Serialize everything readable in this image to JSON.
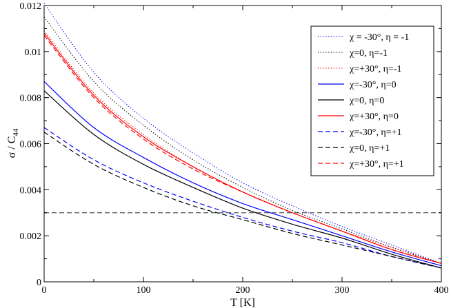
{
  "chart_data": {
    "type": "line",
    "title": "",
    "xlabel": "T [K]",
    "ylabel_main": "σ / C",
    "ylabel_sub": "44",
    "xlim": [
      0,
      400
    ],
    "ylim": [
      0,
      0.012
    ],
    "x_ticks": [
      0,
      100,
      200,
      300,
      400
    ],
    "x_tick_labels": [
      "0",
      "100",
      "200",
      "300",
      "400"
    ],
    "y_ticks": [
      0,
      0.002,
      0.004,
      0.006,
      0.008,
      0.01,
      0.012
    ],
    "y_tick_labels": [
      "0",
      "0.002",
      "0.004",
      "0.006",
      "0.008",
      "0.01",
      "0.012"
    ],
    "grid": false,
    "legend_position": "top-right",
    "x": [
      0,
      50,
      100,
      150,
      200,
      250,
      300,
      350,
      400
    ],
    "series": [
      {
        "name": "χ = -30°, η = -1",
        "color": "#0000ff",
        "dash": "dotted",
        "values": [
          0.0121,
          0.0091,
          0.0071,
          0.0056,
          0.0043,
          0.0033,
          0.0024,
          0.0016,
          0.0008
        ]
      },
      {
        "name": "χ=0, η=-1",
        "color": "#000000",
        "dash": "dotted",
        "values": [
          0.0115,
          0.0087,
          0.0068,
          0.0053,
          0.0041,
          0.0031,
          0.0023,
          0.0015,
          0.0008
        ]
      },
      {
        "name": "χ=+30°, η=-1",
        "color": "#ff0000",
        "dash": "dotted",
        "values": [
          0.0109,
          0.0082,
          0.0064,
          0.005,
          0.0039,
          0.003,
          0.0022,
          0.0015,
          0.0008
        ]
      },
      {
        "name": "χ=-30°, η=0",
        "color": "#0000ff",
        "dash": "solid",
        "values": [
          0.0087,
          0.0067,
          0.0054,
          0.0043,
          0.0034,
          0.0027,
          0.002,
          0.0013,
          0.0007
        ]
      },
      {
        "name": "χ=0, η=0",
        "color": "#000000",
        "dash": "solid",
        "values": [
          0.0083,
          0.0064,
          0.0051,
          0.0041,
          0.0032,
          0.0025,
          0.0019,
          0.0012,
          0.0006
        ]
      },
      {
        "name": "χ=+30°, η=0",
        "color": "#ff0000",
        "dash": "solid",
        "values": [
          0.0108,
          0.0081,
          0.0063,
          0.005,
          0.0039,
          0.003,
          0.0022,
          0.0014,
          0.0008
        ]
      },
      {
        "name": "χ=-30°, η=+1",
        "color": "#0000ff",
        "dash": "dashed",
        "values": [
          0.0067,
          0.0053,
          0.0043,
          0.0035,
          0.0028,
          0.0022,
          0.0017,
          0.0011,
          0.0006
        ]
      },
      {
        "name": "χ=0, η=+1",
        "color": "#000000",
        "dash": "dashed",
        "values": [
          0.0065,
          0.0051,
          0.0041,
          0.0033,
          0.0027,
          0.0021,
          0.0016,
          0.0011,
          0.0006
        ]
      },
      {
        "name": "χ=+30°, η=+1",
        "color": "#ff0000",
        "dash": "dashed",
        "values": [
          0.0107,
          0.008,
          0.0062,
          0.0049,
          0.0039,
          0.003,
          0.0022,
          0.0014,
          0.0008
        ]
      }
    ],
    "reference_line": {
      "y": 0.003,
      "color": "#555555",
      "dash": "dashed"
    }
  }
}
